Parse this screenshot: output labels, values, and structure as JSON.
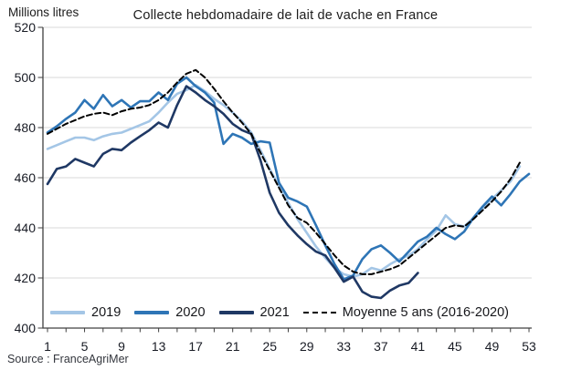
{
  "source": "Source : FranceAgriMer",
  "colors": {
    "grid": "#d9d9d9",
    "axis": "#404040",
    "tick_label": "#181b24",
    "title_text": "#1c1c1c",
    "series_2019": "#a4c6e6",
    "series_2020": "#2e75b6",
    "series_2021": "#1f3864",
    "series_avg": "#000000"
  },
  "chart_data": {
    "type": "line",
    "title": "Collecte hebdomadaire de lait de vache en France",
    "ylabel": "Millions litres",
    "xlabel": "",
    "xlim": [
      1,
      53
    ],
    "ylim": [
      400,
      520
    ],
    "x_ticks": [
      1,
      5,
      9,
      13,
      17,
      21,
      25,
      29,
      33,
      37,
      41,
      45,
      49,
      53
    ],
    "x_minor_tick_step": 2,
    "y_ticks": [
      400,
      420,
      440,
      460,
      480,
      500,
      520
    ],
    "grid": true,
    "legend_position": "bottom",
    "series": [
      {
        "name": "2019",
        "color": "#a4c6e6",
        "dashed": false,
        "start_week": 1,
        "values": [
          471.5,
          473,
          474.5,
          476,
          476,
          475,
          476.5,
          477.5,
          478,
          479.5,
          481,
          482.5,
          486,
          490,
          493.5,
          495,
          497,
          494.5,
          491.5,
          489,
          486,
          482.5,
          478,
          471,
          463.5,
          456.5,
          450,
          443.5,
          438,
          432.5,
          428,
          424,
          421.5,
          420.5,
          421.5,
          424,
          423,
          425.5,
          427.5,
          429,
          431.5,
          435.5,
          439,
          445,
          441.5,
          440.5,
          444,
          447.5,
          451.5,
          455,
          458.5,
          464.5
        ]
      },
      {
        "name": "2020",
        "color": "#2e75b6",
        "dashed": false,
        "start_week": 1,
        "values": [
          478,
          480.5,
          483.5,
          486,
          491,
          487.5,
          493,
          488.5,
          491,
          488,
          490.5,
          490.5,
          494,
          491,
          497.5,
          500,
          496.5,
          494,
          490,
          473.5,
          477.5,
          476,
          473.5,
          474.5,
          474,
          458,
          452,
          450.5,
          448.5,
          441,
          433,
          425.5,
          419.5,
          421,
          427.5,
          431.5,
          433,
          430,
          426.5,
          430.5,
          434.5,
          436.5,
          440,
          437.5,
          435.5,
          438.5,
          444,
          448.5,
          452.5,
          449,
          453.5,
          458.5,
          461.5
        ]
      },
      {
        "name": "2021",
        "color": "#1f3864",
        "dashed": false,
        "start_week": 1,
        "values": [
          457.5,
          463.5,
          464.5,
          467.5,
          466,
          464.5,
          469.5,
          471.5,
          471,
          474,
          476.5,
          479,
          482,
          480,
          489,
          496.5,
          494,
          491,
          488.5,
          485.5,
          481.5,
          479,
          477.5,
          467,
          454,
          446,
          441,
          437,
          433.5,
          430.5,
          429,
          424,
          418.5,
          420.5,
          414.5,
          412.5,
          412,
          415,
          417,
          418,
          422
        ]
      },
      {
        "name": "Moyenne 5 ans (2016-2020)",
        "color": "#000000",
        "dashed": true,
        "start_week": 1,
        "values": [
          477.5,
          479.5,
          481.5,
          483,
          484.5,
          485.5,
          486,
          485,
          486.5,
          487.5,
          488,
          489,
          491,
          494,
          498,
          501.5,
          503,
          500,
          495.5,
          490.5,
          486,
          482,
          477.5,
          470,
          463,
          456,
          449,
          444,
          442,
          438,
          433.5,
          429,
          425,
          422.5,
          421.5,
          421.5,
          422.5,
          423.5,
          425,
          428,
          431,
          434,
          437,
          440,
          441,
          440.5,
          443.5,
          447,
          450.5,
          454.5,
          459.5,
          466
        ]
      }
    ]
  }
}
